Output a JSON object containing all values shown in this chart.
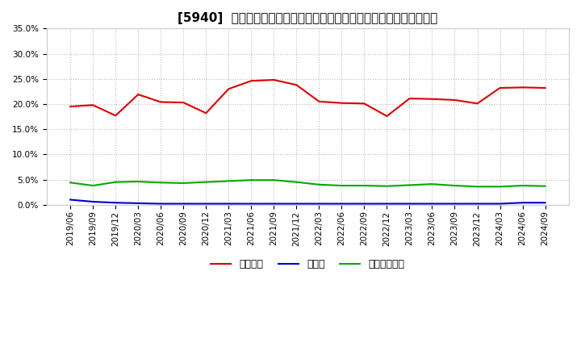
{
  "title": "[5940]  自己資本、のれん、繰延税金資産の総資産に対する比率の推移",
  "x_labels": [
    "2019/06",
    "2019/09",
    "2019/12",
    "2020/03",
    "2020/06",
    "2020/09",
    "2020/12",
    "2021/03",
    "2021/06",
    "2021/09",
    "2021/12",
    "2022/03",
    "2022/06",
    "2022/09",
    "2022/12",
    "2023/03",
    "2023/06",
    "2023/09",
    "2023/12",
    "2024/03",
    "2024/06",
    "2024/09"
  ],
  "jiko_shihon": [
    19.5,
    19.8,
    17.7,
    21.9,
    20.4,
    20.3,
    18.2,
    23.0,
    24.6,
    24.8,
    23.8,
    20.5,
    20.2,
    20.1,
    17.6,
    21.1,
    21.0,
    20.8,
    20.1,
    23.2,
    23.3,
    23.2
  ],
  "noren": [
    1.0,
    0.6,
    0.4,
    0.3,
    0.2,
    0.2,
    0.2,
    0.2,
    0.2,
    0.2,
    0.2,
    0.2,
    0.2,
    0.2,
    0.2,
    0.2,
    0.2,
    0.2,
    0.2,
    0.2,
    0.4,
    0.4
  ],
  "kurinobe_zekin": [
    4.4,
    3.8,
    4.5,
    4.6,
    4.4,
    4.3,
    4.5,
    4.7,
    4.9,
    4.9,
    4.5,
    4.0,
    3.8,
    3.8,
    3.7,
    3.9,
    4.1,
    3.8,
    3.6,
    3.6,
    3.8,
    3.7
  ],
  "line_colors": {
    "jiko_shihon": "#dd0000",
    "noren": "#0000cc",
    "kurinobe_zekin": "#00aa00"
  },
  "legend_labels": {
    "jiko_shihon": "自己資本",
    "noren": "のれん",
    "kurinobe_zekin": "繰延税金資産"
  },
  "ylim": [
    0.0,
    35.0
  ],
  "yticks": [
    0.0,
    5.0,
    10.0,
    15.0,
    20.0,
    25.0,
    30.0,
    35.0
  ],
  "background_color": "#ffffff",
  "grid_color": "#bbbbbb",
  "title_fontsize": 11,
  "legend_fontsize": 9,
  "tick_fontsize": 7.5
}
